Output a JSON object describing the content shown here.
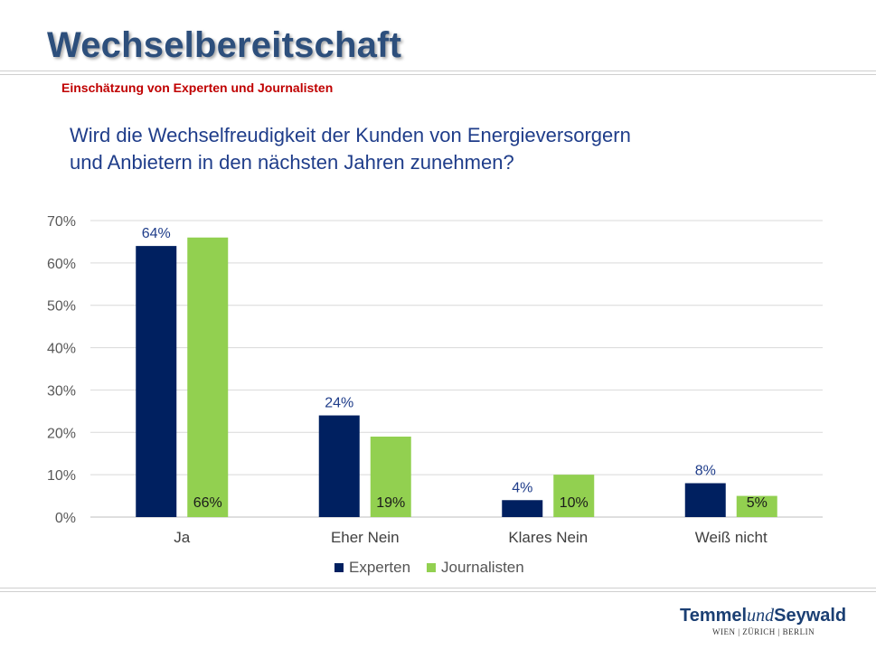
{
  "header": {
    "title": "Wechselbereitschaft",
    "subtitle": "Einschätzung von Experten und Journalisten",
    "question_line1": "Wird die Wechselfreudigkeit der Kunden von Energieversorgern",
    "question_line2": "und Anbietern in den nächsten Jahren zunehmen?"
  },
  "chart_data": {
    "type": "bar",
    "title": "Wird die Wechselfreudigkeit der Kunden von Energieversorgern und Anbietern in den nächsten Jahren zunehmen?",
    "categories": [
      "Ja",
      "Eher Nein",
      "Klares Nein",
      "Weiß nicht"
    ],
    "series": [
      {
        "name": "Experten",
        "color": "#002060",
        "values": [
          64,
          24,
          4,
          8
        ],
        "labels": [
          "64%",
          "24%",
          "4%",
          "8%"
        ]
      },
      {
        "name": "Journalisten",
        "color": "#92d050",
        "values": [
          66,
          19,
          10,
          5
        ],
        "labels": [
          "66%",
          "19%",
          "10%",
          "5%"
        ]
      }
    ],
    "yticks": [
      "0%",
      "10%",
      "20%",
      "30%",
      "40%",
      "50%",
      "60%",
      "70%"
    ],
    "ylim": [
      0,
      70
    ],
    "grid": true,
    "legend": "bottom",
    "xlabel": "",
    "ylabel": ""
  },
  "legend": {
    "experten": "Experten",
    "journalisten": "Journalisten",
    "experten_color": "#002060",
    "journalisten_color": "#92d050"
  },
  "footer": {
    "logo_part1": "Temmel",
    "logo_part2": "und",
    "logo_part3": "Seywald",
    "logo_cities": "WIEN | ZÜRICH | BERLIN"
  }
}
